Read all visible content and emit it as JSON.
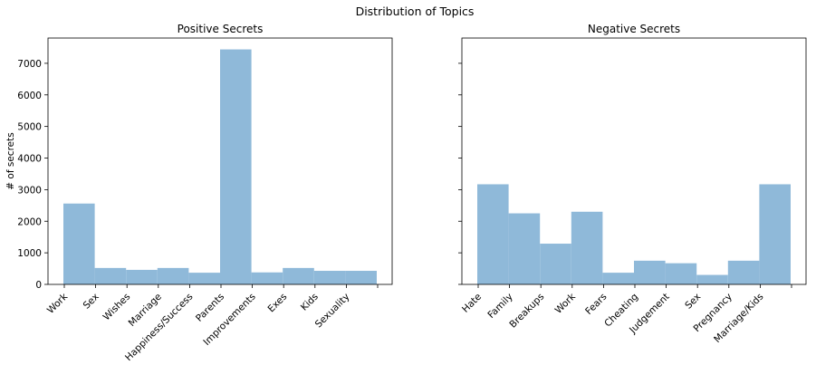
{
  "suptitle": "Distribution of Topics",
  "colors": {
    "bar": "#8fb9d9",
    "axis": "#000000",
    "background": "#ffffff"
  },
  "chart_data": [
    {
      "type": "bar",
      "title": "Positive Secrets",
      "xlabel": "",
      "ylabel": "# of secrets",
      "categories": [
        "Work",
        "Sex",
        "Wishes",
        "Marriage",
        "Happiness/Success",
        "Parents",
        "Improvements",
        "Exes",
        "Kids",
        "Sexuality"
      ],
      "values": [
        2560,
        520,
        460,
        520,
        370,
        7440,
        380,
        520,
        430,
        430
      ],
      "ylim": [
        0,
        7800
      ],
      "yticks": [
        "0",
        "1000",
        "2000",
        "3000",
        "4000",
        "5000",
        "6000",
        "7000"
      ],
      "grid": false
    },
    {
      "type": "bar",
      "title": "Negative Secrets",
      "xlabel": "",
      "ylabel": "",
      "categories": [
        "Hate",
        "Family",
        "Breakups",
        "Work",
        "Fears",
        "Cheating",
        "Judgement",
        "Sex",
        "Pregnancy",
        "Marriage/Kids"
      ],
      "values": [
        3170,
        2250,
        1290,
        2300,
        370,
        750,
        670,
        300,
        750,
        3170
      ],
      "ylim": [
        0,
        7800
      ],
      "yticks": [
        "",
        "",
        "",
        "",
        "",
        "",
        "",
        ""
      ],
      "grid": false
    }
  ]
}
